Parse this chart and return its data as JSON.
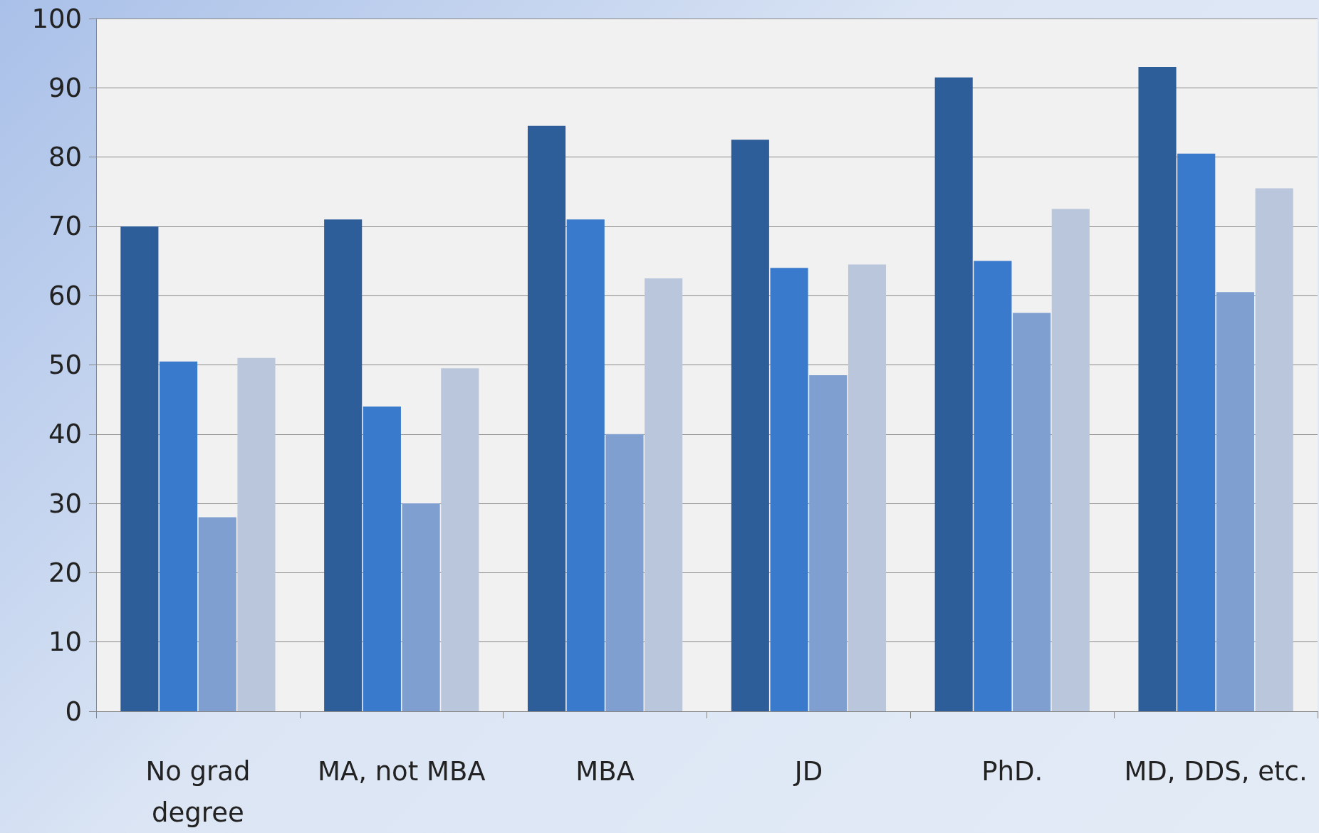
{
  "chart_data": {
    "type": "bar",
    "categories": [
      "No grad\ndegree",
      "MA, not MBA",
      "MBA",
      "JD",
      "PhD.",
      "MD, DDS, etc."
    ],
    "series": [
      {
        "color": "#2d5e9a",
        "values": [
          70,
          71,
          84.5,
          82.5,
          91.5,
          93
        ]
      },
      {
        "color": "#3a7acc",
        "values": [
          50.5,
          44,
          71,
          64,
          65,
          80.5
        ]
      },
      {
        "color": "#7f9fd0",
        "values": [
          28,
          30,
          40,
          48.5,
          57.5,
          60.5
        ]
      },
      {
        "color": "#b9c6dc",
        "values": [
          51,
          49.5,
          62.5,
          64.5,
          72.5,
          75.5
        ]
      }
    ],
    "ylim": [
      0,
      100
    ],
    "yticks": [
      0,
      10,
      20,
      30,
      40,
      50,
      60,
      70,
      80,
      90,
      100
    ],
    "grid": "y"
  }
}
